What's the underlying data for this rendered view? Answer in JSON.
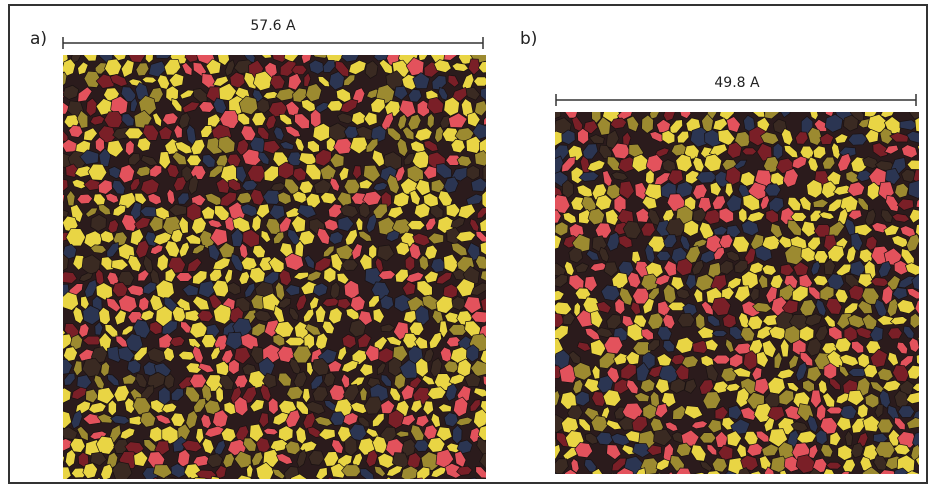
{
  "panels": [
    {
      "label": "a)",
      "scale": "57.6 A"
    },
    {
      "label": "b)",
      "scale": "49.8 A"
    }
  ]
}
